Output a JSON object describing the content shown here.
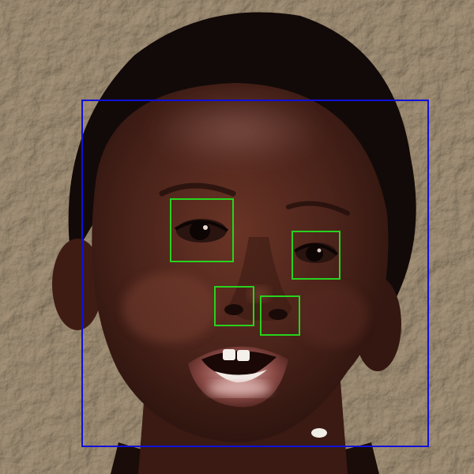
{
  "image": {
    "subject": "child-face-photo",
    "colors": {
      "wall": "#c2b6a4",
      "skin": "#4a231a",
      "hair": "#120a08",
      "face_box": "#1010d8",
      "feature_box": "#28d21e"
    }
  },
  "detections": {
    "face": {
      "label": ""
    },
    "features": [
      {
        "name": "left-eye"
      },
      {
        "name": "right-eye"
      },
      {
        "name": "left-nostril"
      },
      {
        "name": "right-nostril"
      }
    ]
  }
}
